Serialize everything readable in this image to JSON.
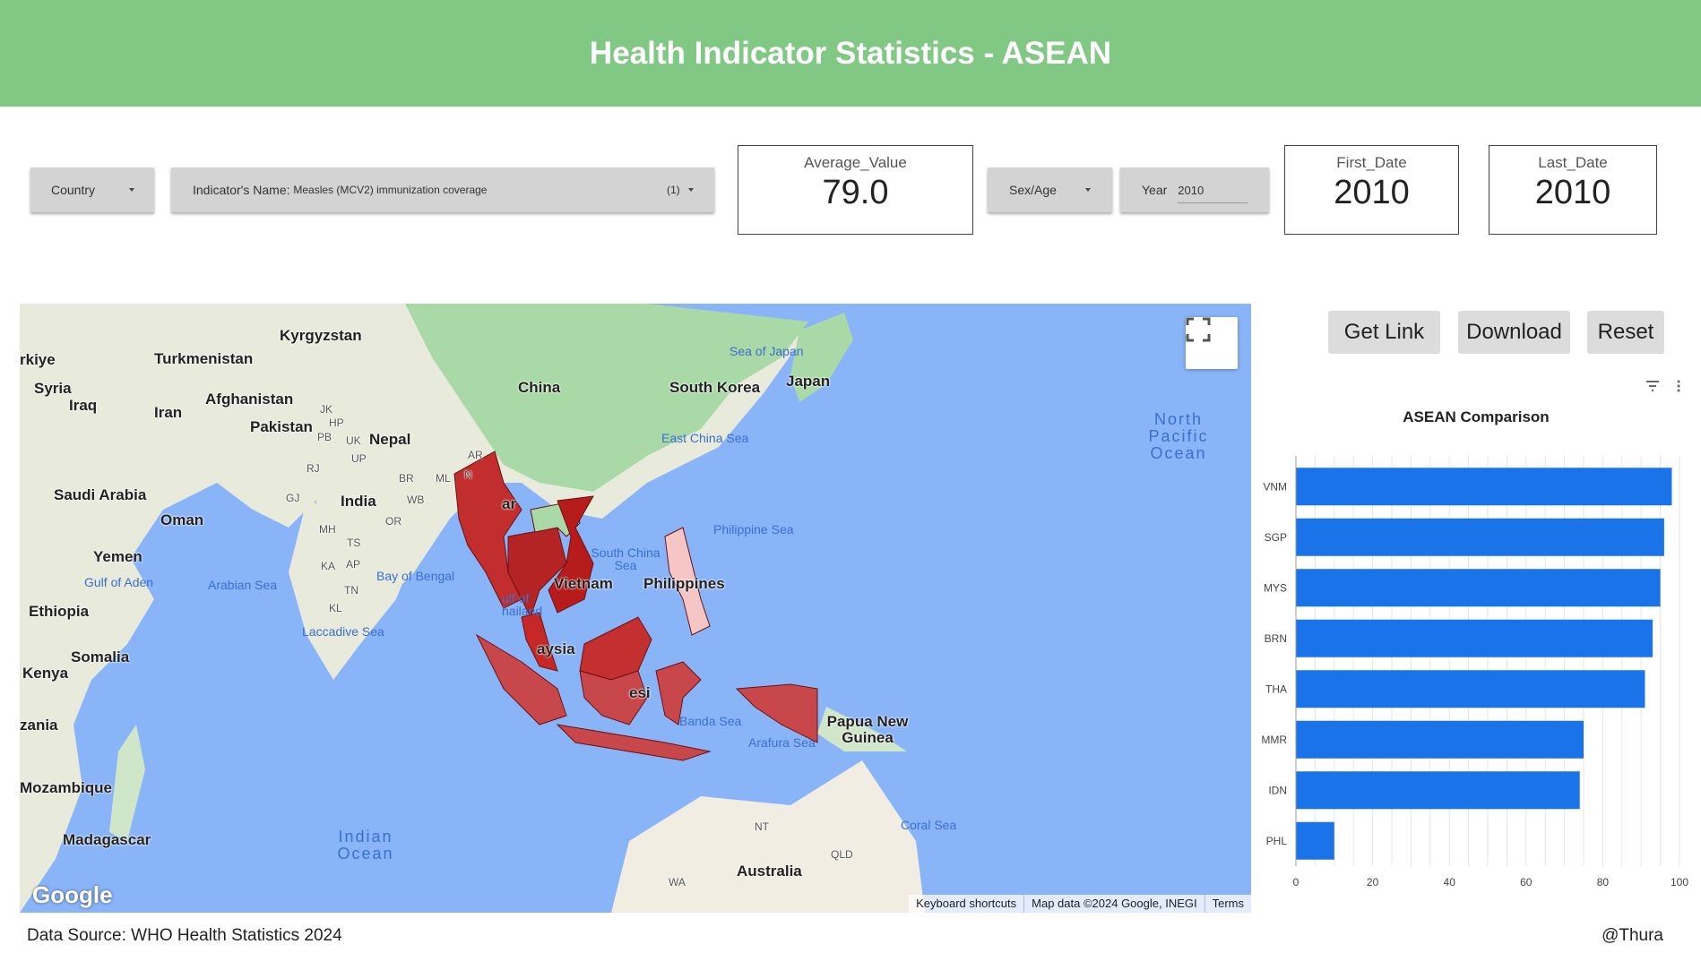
{
  "header": {
    "title": "Health Indicator Statistics - ASEAN"
  },
  "filters": {
    "country": {
      "label": "Country"
    },
    "indicator": {
      "label": "Indicator's Name",
      "value": "Measles (MCV2) immunization coverage",
      "count": "(1)"
    },
    "sex_age": {
      "label": "Sex/Age"
    },
    "year": {
      "label": "Year",
      "value": "2010"
    }
  },
  "scorecards": {
    "average": {
      "label": "Average_Value",
      "value": "79.0"
    },
    "first_date": {
      "label": "First_Date",
      "value": "2010"
    },
    "last_date": {
      "label": "Last_Date",
      "value": "2010"
    }
  },
  "buttons": {
    "get_link": "Get Link",
    "download": "Download",
    "reset": "Reset"
  },
  "map": {
    "labels": {
      "kyrgyzstan": "Kyrgyzstan",
      "turkmenistan": "Turkmenistan",
      "turkiye": "rkiye",
      "syria": "Syria",
      "iraq": "Iraq",
      "iran": "Iran",
      "afghanistan": "Afghanistan",
      "pakistan": "Pakistan",
      "nepal": "Nepal",
      "india": "India",
      "saudi": "Saudi Arabia",
      "oman": "Oman",
      "yemen": "Yemen",
      "ethiopia": "Ethiopia",
      "somalia": "Somalia",
      "kenya": "Kenya",
      "tanzania": "zania",
      "mozambique": "Mozambique",
      "madagascar": "Madagascar",
      "china": "China",
      "south_korea": "South Korea",
      "japan": "Japan",
      "myanmar": "ar",
      "vietnam": "Vietnam",
      "philippines": "Philippines",
      "malaysia": "aysia",
      "indonesia": "esi",
      "png": "Papua New Guinea",
      "australia": "Australia",
      "nt": "NT",
      "qld": "QLD",
      "wa": "WA",
      "jk": "JK",
      "hp": "HP",
      "pb": "PB",
      "uk": "UK",
      "up": "UP",
      "rj": "RJ",
      "ar": "AR",
      "br": "BR",
      "ml": "ML",
      "gj": "GJ",
      "wb": "WB",
      "mh": "MH",
      "or": "OR",
      "ts": "TS",
      "ka": "KA",
      "ap": "AP",
      "tn": "TN",
      "kl": "KL",
      "n": "N"
    },
    "seas": {
      "sea_of_japan": "Sea of Japan",
      "east_china_sea": "East China Sea",
      "philippine_sea": "Philippine Sea",
      "south_china_sea": "South China Sea",
      "bay_of_bengal": "Bay of Bengal",
      "arabian_sea": "Arabian Sea",
      "gulf_of_aden": "Gulf of Aden",
      "laccadive_sea": "Laccadive Sea",
      "gulf_of_thailand": "ulf of hailand",
      "banda_sea": "Banda Sea",
      "arafura_sea": "Arafura Sea",
      "coral_sea": "Coral Sea",
      "north_pacific": "North Pacific Ocean",
      "indian_ocean": "Indian Ocean"
    },
    "logo": "Google",
    "attribution": {
      "shortcuts": "Keyboard shortcuts",
      "data": "Map data ©2024 Google, INEGI",
      "terms": "Terms"
    }
  },
  "chart_data": {
    "type": "bar",
    "orientation": "horizontal",
    "title": "ASEAN Comparison",
    "categories": [
      "VNM",
      "SGP",
      "MYS",
      "BRN",
      "THA",
      "MMR",
      "IDN",
      "PHL"
    ],
    "values": [
      98,
      96,
      95,
      93,
      91,
      75,
      74,
      10
    ],
    "xlim": [
      0,
      100
    ],
    "xticks": [
      "0",
      "20",
      "40",
      "60",
      "80",
      "100"
    ],
    "bar_color": "#1a73e8",
    "grid": true
  },
  "footer": {
    "source": "Data Source: WHO Health Statistics 2024",
    "author": "@Thura"
  }
}
